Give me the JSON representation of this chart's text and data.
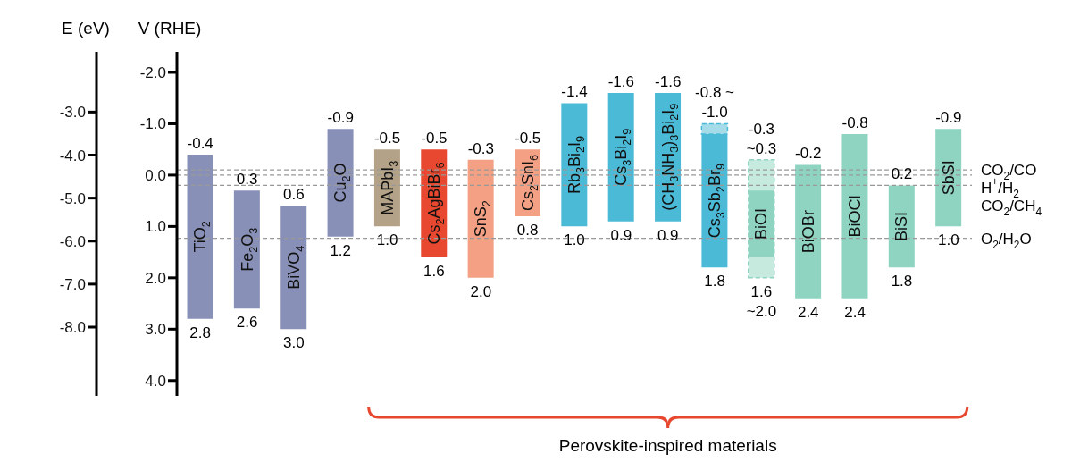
{
  "chart_data": {
    "type": "bar",
    "ylabel": "V (RHE)",
    "y2label": "E (eV)",
    "categories": [
      "TiO$_{2}$",
      "Fe$_{2}$O$_{3}$",
      "BiVO$_{4}$",
      "Cu$_{2}$O",
      "MAPbI$_{3}$",
      "Cs$_{2}$AgBiBr$_{6}$",
      "SnS$_{2}$",
      "Cs$_{2}$SnI$_{6}$",
      "Rb$_{3}$Bi$_{2}$I$_{9}$",
      "Cs$_{3}$Bi$_{2}$I$_{9}$",
      "(CH$_{3}$NH$_{3}$)$_{3}$Bi$_{2}$I$_{9}$",
      "Cs$_{3}$Sb$_{2}$Br$_{9}$",
      "BiOI",
      "BiOBr",
      "BiOCl",
      "BiSI",
      "SbSI"
    ],
    "series": [
      {
        "line_style": "dashed",
        "base": [
          null,
          null,
          null,
          null,
          null,
          null,
          null,
          null,
          null,
          null,
          null,
          -1.0,
          -0.3,
          null,
          null,
          null,
          null
        ],
        "values": [
          null,
          null,
          null,
          null,
          null,
          null,
          null,
          null,
          null,
          null,
          null,
          0.2,
          2.3,
          null,
          null,
          null,
          null
        ],
        "colors": [
          "#8890b8",
          "#8890b8",
          "#8890b8",
          "#8890b8",
          "#b3a287",
          "#e8482f",
          "#f3a084",
          "#f3a084",
          "#4bbad6",
          "#4bbad6",
          "#4bbad6",
          "#a6dcea",
          "#c6eade",
          "#8fd4c1",
          "#8fd4c1",
          "#8fd4c1",
          "#8fd4c1"
        ]
      },
      {
        "base": [
          -0.4,
          0.3,
          0.6,
          -0.9,
          -0.5,
          -0.5,
          -0.3,
          -0.5,
          -1.4,
          -1.6,
          -1.6,
          -0.8,
          0.3,
          -0.2,
          -0.8,
          0.2,
          -0.9
        ],
        "values": [
          3.2,
          2.3,
          2.4,
          2.1,
          1.5,
          2.1,
          2.3,
          1.3,
          2.4,
          2.5,
          2.5,
          2.6,
          1.3,
          2.6,
          3.2,
          1.6,
          1.9
        ],
        "colors": [
          "#8890b8",
          "#8890b8",
          "#8890b8",
          "#8890b8",
          "#b3a287",
          "#e8482f",
          "#f3a084",
          "#f3a084",
          "#4bbad6",
          "#4bbad6",
          "#4bbad6",
          "#4bbad6",
          "#8fd4c1",
          "#8fd4c1",
          "#8fd4c1",
          "#8fd4c1",
          "#8fd4c1"
        ]
      }
    ],
    "ylim": [
      4.3,
      -2.4
    ],
    "yticks": [
      {
        "value": -2,
        "label": "-2.0"
      },
      {
        "value": -1,
        "label": "-1.0"
      },
      {
        "value": 0,
        "label": "0.0"
      },
      {
        "value": 1,
        "label": "1.0"
      },
      {
        "value": 2,
        "label": "2.0"
      },
      {
        "value": 3,
        "label": "3.0"
      },
      {
        "value": 4,
        "label": "4.0"
      }
    ],
    "y2lim": [
      -9.6,
      -1.6
    ],
    "y2ticks": [
      {
        "value": -3,
        "label": "-3.0"
      },
      {
        "value": -4,
        "label": "-4.0"
      },
      {
        "value": -5,
        "label": "-5.0"
      },
      {
        "value": -6,
        "label": "-6.0"
      },
      {
        "value": -7,
        "label": "-7.0"
      },
      {
        "value": -8,
        "label": "-8.0"
      }
    ],
    "ref_lines": [
      {
        "axis": "y",
        "value": -0.1,
        "label": "CO$_{2}$/CO",
        "color": "#999999",
        "line_style": "dashed"
      },
      {
        "axis": "y",
        "value": 0,
        "label": "H$^{+}$/H$_{2}$",
        "color": "#999999",
        "line_style": "dashed"
      },
      {
        "axis": "y",
        "value": 0.2,
        "label": "CO$_{2}$/CH$_{4}$",
        "color": "#999999",
        "line_style": "dashed"
      },
      {
        "axis": "y",
        "value": 1.23,
        "label": "O$_{2}$/H$_{2}$O",
        "color": "#999999",
        "line_style": "dashed"
      }
    ],
    "annotations": [
      {
        "text": "-0.4",
        "x": "TiO$_{2}$",
        "y": -0.4
      },
      {
        "text": "2.8",
        "x": "TiO$_{2}$",
        "y": 2.8
      },
      {
        "text": "0.3",
        "x": "Fe$_{2}$O$_{3}$",
        "y": 0.3
      },
      {
        "text": "2.6",
        "x": "Fe$_{2}$O$_{3}$",
        "y": 2.6
      },
      {
        "text": "0.6",
        "x": "BiVO$_{4}$",
        "y": 0.6
      },
      {
        "text": "3.0",
        "x": "BiVO$_{4}$",
        "y": 3.0
      },
      {
        "text": "-0.9",
        "x": "Cu$_{2}$O",
        "y": -0.9
      },
      {
        "text": "1.2",
        "x": "Cu$_{2}$O",
        "y": 1.2
      },
      {
        "text": "-0.5",
        "x": "MAPbI$_{3}$",
        "y": -0.5
      },
      {
        "text": "1.0",
        "x": "MAPbI$_{3}$",
        "y": 1.0
      },
      {
        "text": "-0.5",
        "x": "Cs$_{2}$AgBiBr$_{6}$",
        "y": -0.5
      },
      {
        "text": "1.6",
        "x": "Cs$_{2}$AgBiBr$_{6}$",
        "y": 1.6
      },
      {
        "text": "-0.3",
        "x": "SnS$_{2}$",
        "y": -0.3
      },
      {
        "text": "2.0",
        "x": "SnS$_{2}$",
        "y": 2.0
      },
      {
        "text": "-0.5",
        "x": "Cs$_{2}$SnI$_{6}$",
        "y": -0.5
      },
      {
        "text": "0.8",
        "x": "Cs$_{2}$SnI$_{6}$",
        "y": 0.8
      },
      {
        "text": "-1.4",
        "x": "Rb$_{3}$Bi$_{2}$I$_{9}$",
        "y": -1.4
      },
      {
        "text": "1.0",
        "x": "Rb$_{3}$Bi$_{2}$I$_{9}$",
        "y": 1.0
      },
      {
        "text": "-1.6",
        "x": "Cs$_{3}$Bi$_{2}$I$_{9}$",
        "y": -1.6
      },
      {
        "text": "0.9",
        "x": "Cs$_{3}$Bi$_{2}$I$_{9}$",
        "y": 0.9
      },
      {
        "text": "-1.6",
        "x": "(CH$_{3}$NH$_{3}$)$_{3}$Bi$_{2}$I$_{9}$",
        "y": -1.6
      },
      {
        "text": "0.9",
        "x": "(CH$_{3}$NH$_{3}$)$_{3}$Bi$_{2}$I$_{9}$",
        "y": 0.9
      },
      {
        "text": "-0.8 ~",
        "x": "Cs$_{3}$Sb$_{2}$Br$_{9}$",
        "y": -0.8
      },
      {
        "text": "-1.0",
        "x": "Cs$_{3}$Sb$_{2}$Br$_{9}$",
        "y": -1.0
      },
      {
        "text": "1.8",
        "x": "Cs$_{3}$Sb$_{2}$Br$_{9}$",
        "y": 1.8
      },
      {
        "text": "-0.3",
        "x": "BiOI",
        "y": -0.3
      },
      {
        "text": "~0.3",
        "x": "BiOI",
        "y": 0.3
      },
      {
        "text": "1.6",
        "x": "BiOI",
        "y": 1.6
      },
      {
        "text": "~2.0",
        "x": "BiOI",
        "y": 2.0
      },
      {
        "text": "-0.2",
        "x": "BiOBr",
        "y": -0.2
      },
      {
        "text": "2.4",
        "x": "BiOBr",
        "y": 2.4
      },
      {
        "text": "-0.8",
        "x": "BiOCl",
        "y": -0.8
      },
      {
        "text": "2.4",
        "x": "BiOCl",
        "y": 2.4
      },
      {
        "text": "0.2",
        "x": "BiSI",
        "y": 0.2
      },
      {
        "text": "1.8",
        "x": "BiSI",
        "y": 1.8
      },
      {
        "text": "-0.9",
        "x": "SbSI",
        "y": -0.9
      },
      {
        "text": "1.0",
        "x": "SbSI",
        "y": 1.0
      },
      "Perovskite-inspired materials"
    ]
  }
}
